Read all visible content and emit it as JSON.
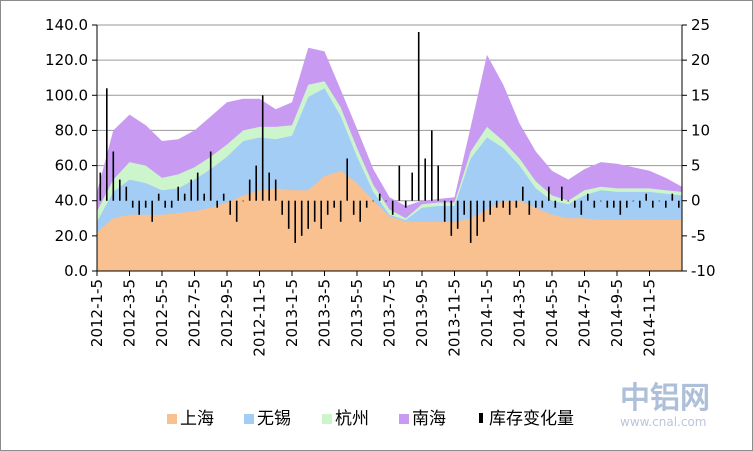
{
  "chart_data": {
    "type": "area",
    "categories": [
      "2012-1-5",
      "2012-3-5",
      "2012-5-5",
      "2012-7-5",
      "2012-9-5",
      "2012-11-5",
      "2013-1-5",
      "2013-3-5",
      "2013-5-5",
      "2013-7-5",
      "2013-9-5",
      "2013-11-5",
      "2014-1-5",
      "2014-3-5",
      "2014-5-5",
      "2014-7-5",
      "2014-9-5",
      "2014-11-5"
    ],
    "ylim": [
      0,
      140
    ],
    "yticks": [
      "0.0",
      "20.0",
      "40.0",
      "60.0",
      "80.0",
      "100.0",
      "120.0",
      "140.0"
    ],
    "y2lim": [
      -10,
      25
    ],
    "y2ticks": [
      "-10",
      "-5",
      "0",
      "5",
      "10",
      "15",
      "20",
      "25"
    ],
    "grid": true,
    "legend_position": "bottom",
    "x_points": [
      0,
      1,
      2,
      3,
      4,
      5,
      6,
      7,
      8,
      9,
      10,
      11,
      12,
      13,
      14,
      15,
      16,
      17,
      18,
      19,
      20,
      21,
      22,
      23,
      24,
      25,
      26,
      27,
      28,
      29,
      30,
      31,
      32,
      33,
      34,
      35,
      36,
      37,
      38,
      39,
      40,
      41,
      42,
      43,
      44,
      45,
      46,
      47,
      48,
      49,
      50,
      51,
      52,
      53,
      54,
      55,
      56,
      57,
      58,
      59,
      60,
      61,
      62,
      63,
      64,
      65,
      66,
      67,
      68,
      69,
      70,
      71,
      72,
      73,
      74,
      75,
      76,
      77,
      78,
      79,
      80,
      81,
      82,
      83,
      84,
      85,
      86,
      87,
      88,
      89,
      90,
      91,
      92,
      93,
      94,
      95,
      96,
      97,
      98,
      99,
      100,
      101,
      102,
      103,
      104,
      105,
      106,
      107,
      108,
      109,
      110,
      111,
      112,
      113,
      114,
      115,
      116,
      117,
      118,
      119,
      120,
      121,
      122,
      123,
      124,
      125,
      126,
      127,
      128,
      129,
      130,
      131,
      132,
      133,
      134,
      135,
      136,
      137,
      138,
      139,
      140,
      141,
      142,
      143,
      144,
      145,
      146,
      147,
      148,
      149,
      150,
      151,
      152,
      153,
      154,
      155,
      156,
      157,
      158,
      159,
      160,
      161,
      162,
      163,
      164,
      165,
      166,
      167,
      168,
      169,
      170,
      171,
      172,
      173,
      174,
      175,
      176,
      177,
      178,
      179,
      180,
      181,
      182,
      183,
      184,
      185,
      186,
      187,
      188,
      189,
      190,
      191,
      192,
      193,
      194,
      195,
      196,
      197,
      198,
      199,
      200,
      201,
      202,
      203,
      204,
      205,
      206,
      207,
      208,
      209,
      210,
      211,
      212,
      213,
      214,
      215,
      216,
      217,
      218,
      219,
      220,
      221,
      222,
      223,
      224,
      225,
      226,
      227,
      228,
      229,
      230,
      231,
      232,
      233,
      234,
      235,
      236,
      237,
      238,
      239,
      240,
      241,
      242,
      243,
      244,
      245,
      246,
      247,
      248,
      249,
      250,
      251,
      252,
      253,
      254,
      255,
      256,
      257,
      258,
      259,
      260,
      261,
      262,
      263,
      264,
      265,
      266,
      267,
      268,
      269,
      270,
      271,
      272,
      273,
      274,
      275,
      276,
      277,
      278,
      279,
      280,
      281,
      282,
      283,
      284,
      285,
      286,
      287,
      288,
      289,
      290,
      291,
      292,
      293,
      294,
      295,
      296,
      297,
      298,
      299,
      300,
      301,
      302,
      303,
      304,
      305,
      306,
      307,
      308,
      309,
      310,
      311,
      312,
      313,
      314,
      315,
      316,
      317,
      318,
      319,
      320,
      321,
      322,
      323,
      324,
      325,
      326,
      327,
      328,
      329,
      330,
      331,
      332,
      333,
      334,
      335,
      336,
      337,
      338,
      339,
      340,
      341,
      342,
      343,
      344,
      345,
      346,
      347,
      348,
      349,
      350,
      351,
      352,
      353,
      354,
      355,
      356,
      357,
      358,
      359,
      360,
      361,
      362,
      363,
      364,
      365,
      366,
      367,
      368,
      369,
      370,
      371,
      372,
      373,
      374,
      375,
      376,
      377,
      378,
      379,
      380,
      381,
      382,
      383,
      384,
      385,
      386,
      387,
      388,
      389,
      390,
      391,
      392,
      393,
      394,
      395,
      396,
      397,
      398,
      399,
      400,
      401,
      402,
      403,
      404,
      405,
      406,
      407,
      408,
      409,
      410,
      411,
      412,
      413,
      414,
      415,
      416,
      417,
      418,
      419,
      420,
      421,
      422,
      423,
      424,
      425,
      426,
      427,
      428,
      429,
      430,
      431,
      432,
      433,
      434,
      435,
      436,
      437,
      438,
      439,
      440,
      441,
      442,
      443,
      444,
      445,
      446,
      447,
      448,
      449,
      450,
      451,
      452,
      453,
      454,
      455,
      456,
      457,
      458,
      459,
      460,
      461,
      462,
      463,
      464,
      465,
      466,
      467,
      468,
      469,
      470,
      471,
      472,
      473,
      474,
      475,
      476,
      477,
      478,
      479,
      480,
      481,
      482,
      483,
      484,
      485,
      486,
      487,
      488,
      489,
      490,
      491,
      492,
      493,
      494,
      495,
      496,
      497,
      498,
      499,
      500,
      501,
      502,
      503,
      504,
      505,
      506,
      507,
      508,
      509,
      510,
      511,
      512,
      513,
      514,
      515,
      516,
      517,
      518,
      519,
      520,
      521,
      522,
      523,
      524,
      525,
      526,
      527,
      528,
      529,
      530,
      531,
      532,
      533,
      534,
      535,
      536,
      537,
      538,
      539,
      540,
      541,
      542,
      543,
      544,
      545,
      546,
      547,
      548,
      549,
      550,
      551,
      552,
      553,
      554,
      555,
      556,
      557,
      558,
      559,
      560,
      561,
      562,
      563,
      564,
      565,
      566,
      567,
      568,
      569,
      570,
      571,
      572,
      573,
      574,
      575,
      576,
      577,
      578,
      579,
      580,
      581,
      582,
      583,
      584,
      585,
      586,
      587,
      588,
      589,
      590,
      591,
      592,
      593,
      594,
      595,
      596,
      597,
      598,
      599,
      600,
      601,
      602,
      603,
      604,
      605,
      606,
      607,
      608,
      609,
      610,
      611,
      612,
      613,
      614,
      615,
      616,
      617,
      618,
      619,
      620,
      621,
      622,
      623,
      624,
      625,
      626,
      627,
      628,
      629,
      630,
      631,
      632,
      633,
      634,
      635,
      636,
      637,
      638,
      639,
      640,
      641,
      642,
      643,
      644,
      645,
      646,
      647,
      648,
      649,
      650,
      651,
      652,
      653,
      654,
      655,
      656,
      657,
      658,
      659,
      660,
      661,
      662,
      663,
      664,
      665,
      666,
      667,
      668,
      669,
      670,
      671,
      672,
      673,
      674,
      675,
      676,
      677,
      678,
      679,
      680,
      681,
      682,
      683,
      684,
      685,
      686,
      687,
      688,
      689,
      690,
      691,
      692,
      693,
      694,
      695,
      696,
      697,
      698,
      699,
      700,
      701,
      702,
      703,
      704,
      705,
      706,
      707,
      708,
      709,
      710,
      711,
      712,
      713,
      714,
      715,
      716,
      717,
      718,
      719,
      720,
      721,
      722,
      723,
      724,
      725,
      726,
      727,
      728,
      729,
      730,
      731,
      732,
      733,
      734,
      735,
      736,
      737,
      738,
      739,
      740,
      741,
      742,
      743,
      744,
      745,
      746,
      747,
      748,
      749,
      750,
      751,
      752,
      753,
      754,
      755,
      756,
      757,
      758,
      759,
      760,
      761,
      762,
      763,
      764,
      765,
      766,
      767,
      768,
      769,
      770,
      771,
      772,
      773,
      774,
      775,
      776,
      777,
      778,
      779,
      780,
      781,
      782,
      783,
      784,
      785,
      786,
      787,
      788,
      789,
      790,
      791,
      792,
      793,
      794,
      795,
      796,
      797,
      798,
      799,
      800,
      801,
      802,
      803,
      804,
      805,
      806,
      807,
      808,
      809,
      810,
      811,
      812,
      813,
      814,
      815,
      816,
      817,
      818,
      819,
      820,
      821,
      822,
      823,
      824,
      825,
      826,
      827,
      828,
      829,
      830,
      831,
      832,
      833,
      834,
      835,
      836,
      837,
      838,
      839,
      840,
      841,
      842,
      843,
      844,
      845,
      846,
      847,
      848,
      849,
      850,
      851,
      852,
      853,
      854,
      855,
      856,
      857,
      858,
      859,
      860,
      861,
      862,
      863,
      864,
      865,
      866,
      867,
      868,
      869,
      870,
      871,
      872,
      873,
      874,
      875,
      876,
      877,
      878,
      879,
      880,
      881,
      882,
      883,
      884,
      885,
      886,
      887,
      888,
      889,
      890,
      891,
      892,
      893,
      894,
      895,
      896,
      897,
      898,
      899,
      900,
      901,
      902,
      903,
      904,
      905,
      906,
      907,
      908,
      909,
      910,
      911,
      912,
      913,
      914,
      915,
      916,
      917,
      918,
      919,
      920,
      921,
      922,
      923,
      924,
      925,
      926,
      927,
      928,
      929,
      930,
      931,
      932,
      933,
      934,
      935,
      936,
      937,
      938,
      939,
      940,
      941,
      942,
      943,
      944,
      945,
      946,
      947,
      948,
      949,
      950,
      951,
      952,
      953,
      954,
      955,
      956,
      957,
      958,
      959,
      960,
      961,
      962,
      963,
      964,
      965,
      966,
      967,
      968,
      969,
      970,
      971,
      972,
      973,
      974,
      975,
      976,
      977,
      978,
      979,
      980,
      981,
      982,
      983,
      984,
      985,
      986,
      987,
      988,
      989,
      990,
      991,
      992,
      993,
      994,
      995,
      996,
      997,
      998,
      999,
      1000,
      1001,
      1002,
      1003,
      1004,
      1005,
      1006,
      1007,
      1008,
      1009,
      1010,
      1011,
      1012,
      1013,
      1014,
      1015,
      1016,
      1017,
      1018,
      1019,
      1020,
      1021,
      1022,
      1023,
      1024,
      1025,
      1026,
      1027,
      1028,
      1029,
      1030,
      1031,
      1032,
      1033,
      1034,
      1035,
      1036,
      1037,
      1038,
      1039,
      1040,
      1041,
      1042,
      1043,
      1044,
      1045,
      1046,
      1047,
      1048,
      1049,
      1050,
      1051,
      1052,
      1053,
      1054,
      1055,
      1056,
      1057,
      1058,
      1059,
      1060,
      1061,
      1062,
      1063,
      1064,
      1065,
      1066,
      1067,
      1068,
      1069,
      1070,
      1071,
      1072,
      1073,
      1074,
      1075,
      1076,
      1077,
      1078,
      1079,
      1080,
      1081,
      1082,
      1083,
      1084,
      1085,
      1086,
      1087,
      1088,
      1089,
      1090,
      1091,
      1092,
      1093,
      1094,
      1095
    ],
    "areas": {
      "x_month": [
        0,
        1,
        2,
        3,
        4,
        5,
        6,
        7,
        8,
        9,
        10,
        11,
        12,
        13,
        14,
        15,
        16,
        17,
        18,
        19,
        20,
        21,
        22,
        23,
        24,
        25,
        26,
        27,
        28,
        29,
        30,
        31,
        32,
        33,
        34,
        35,
        36
      ],
      "shanghai_total": [
        22,
        30,
        32,
        32,
        32,
        33,
        34,
        36,
        39,
        43,
        46,
        47,
        46,
        46,
        54,
        57,
        50,
        40,
        31,
        28,
        28,
        28,
        28,
        30,
        35,
        40,
        40,
        36,
        32,
        30,
        30,
        29,
        29,
        29,
        29,
        29,
        29
      ],
      "wuxi_total": [
        28,
        45,
        52,
        50,
        46,
        47,
        52,
        58,
        65,
        74,
        76,
        75,
        77,
        99,
        104,
        88,
        65,
        45,
        32,
        29,
        36,
        37,
        37,
        64,
        76,
        70,
        60,
        47,
        40,
        38,
        43,
        46,
        45,
        45,
        45,
        44,
        43
      ],
      "hangzhou_total": [
        34,
        52,
        62,
        60,
        53,
        55,
        59,
        65,
        72,
        80,
        82,
        82,
        83,
        106,
        108,
        93,
        70,
        49,
        35,
        30,
        38,
        39,
        39,
        68,
        82,
        74,
        64,
        51,
        43,
        40,
        46,
        48,
        47,
        47,
        47,
        46,
        45
      ],
      "nanhai_total": [
        45,
        80,
        89,
        83,
        74,
        75,
        80,
        88,
        96,
        98,
        98,
        92,
        96,
        127,
        125,
        103,
        81,
        58,
        42,
        37,
        40,
        41,
        42,
        82,
        123,
        106,
        84,
        68,
        57,
        52,
        58,
        62,
        61,
        59,
        57,
        53,
        48
      ]
    },
    "series": [
      {
        "name": "上海",
        "color": "#f9c090"
      },
      {
        "name": "无锡",
        "color": "#a3cdf5"
      },
      {
        "name": "杭州",
        "color": "#ccf5cc"
      },
      {
        "name": "南海",
        "color": "#c99af2"
      },
      {
        "name": "库存变化量",
        "color": "#000000",
        "axis": "right",
        "type": "bar",
        "x": [
          0.2,
          0.6,
          1.0,
          1.4,
          1.8,
          2.2,
          2.6,
          3.0,
          3.4,
          3.8,
          4.2,
          4.6,
          5.0,
          5.4,
          5.8,
          6.2,
          6.6,
          7.0,
          7.4,
          7.8,
          8.2,
          8.6,
          9.0,
          9.4,
          9.8,
          10.2,
          10.6,
          11.0,
          11.4,
          11.8,
          12.2,
          12.6,
          13.0,
          13.4,
          13.8,
          14.2,
          14.6,
          15.0,
          15.4,
          15.8,
          16.2,
          16.6,
          17.0,
          17.4,
          17.8,
          18.2,
          18.6,
          19.0,
          19.4,
          19.8,
          20.2,
          20.6,
          21.0,
          21.4,
          21.8,
          22.2,
          22.6,
          23.0,
          23.4,
          23.8,
          24.2,
          24.6,
          25.0,
          25.4,
          25.8,
          26.2,
          26.6,
          27.0,
          27.4,
          27.8,
          28.2,
          28.6,
          29.0,
          29.4,
          29.8,
          30.2,
          30.6,
          31.0,
          31.4,
          31.8,
          32.2,
          32.6,
          33.0,
          33.4,
          33.8,
          34.2,
          34.6,
          35.0,
          35.4,
          35.8
        ],
        "values": [
          4,
          16,
          7,
          3,
          2,
          -1,
          -2,
          -1,
          -3,
          1,
          -1,
          -1,
          2,
          1,
          3,
          4,
          1,
          7,
          -1,
          1,
          -2,
          -3,
          0,
          3,
          5,
          15,
          4,
          3,
          -2,
          -4,
          -6,
          -5,
          -4,
          -3,
          -4,
          -2,
          -1,
          -3,
          6,
          -2,
          -3,
          -1,
          0,
          1,
          0,
          -2,
          5,
          -1,
          4,
          24,
          6,
          10,
          5,
          -3,
          -5,
          -4,
          -2,
          -6,
          -5,
          -3,
          -2,
          -1,
          -1,
          -2,
          -1,
          2,
          -2,
          -1,
          -1,
          2,
          -1,
          2,
          0,
          -1,
          -2,
          1,
          -1,
          0,
          -1,
          -1,
          -2,
          -1,
          0,
          -1,
          1,
          -1,
          0,
          -1,
          1,
          -1
        ]
      }
    ]
  },
  "watermark": {
    "logo": "中铝网",
    "url": "www.cnal.com"
  }
}
